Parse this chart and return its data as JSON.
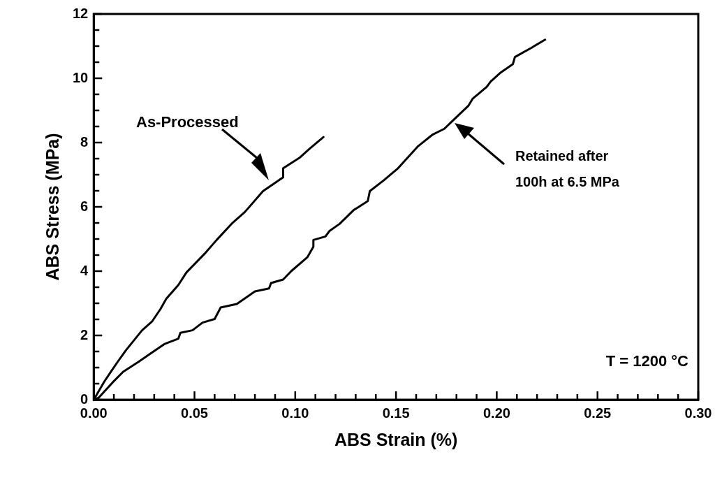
{
  "chart_data": {
    "type": "line",
    "xlabel": "ABS Strain (%)",
    "ylabel": "ABS Stress (MPa)",
    "xlim": [
      0,
      0.3
    ],
    "ylim": [
      0,
      12
    ],
    "xticks": [
      {
        "value": 0,
        "label": "0.00"
      },
      {
        "value": 0.01,
        "label": null
      },
      {
        "value": 0.02,
        "label": null
      },
      {
        "value": 0.03,
        "label": null
      },
      {
        "value": 0.04,
        "label": null
      },
      {
        "value": 0.05,
        "label": "0.05"
      },
      {
        "value": 0.06,
        "label": null
      },
      {
        "value": 0.07,
        "label": null
      },
      {
        "value": 0.08,
        "label": null
      },
      {
        "value": 0.09,
        "label": null
      },
      {
        "value": 0.1,
        "label": "0.10"
      },
      {
        "value": 0.11,
        "label": null
      },
      {
        "value": 0.12,
        "label": null
      },
      {
        "value": 0.13,
        "label": null
      },
      {
        "value": 0.14,
        "label": null
      },
      {
        "value": 0.15,
        "label": "0.15"
      },
      {
        "value": 0.16,
        "label": null
      },
      {
        "value": 0.17,
        "label": null
      },
      {
        "value": 0.18,
        "label": null
      },
      {
        "value": 0.19,
        "label": null
      },
      {
        "value": 0.2,
        "label": "0.20"
      },
      {
        "value": 0.21,
        "label": null
      },
      {
        "value": 0.22,
        "label": null
      },
      {
        "value": 0.23,
        "label": null
      },
      {
        "value": 0.24,
        "label": null
      },
      {
        "value": 0.25,
        "label": "0.25"
      },
      {
        "value": 0.26,
        "label": null
      },
      {
        "value": 0.27,
        "label": null
      },
      {
        "value": 0.28,
        "label": null
      },
      {
        "value": 0.29,
        "label": null
      },
      {
        "value": 0.3,
        "label": "0.30"
      }
    ],
    "yticks": [
      0,
      {
        "value": 0.5,
        "label": null
      },
      {
        "value": 1,
        "label": null
      },
      {
        "value": 1.5,
        "label": null
      },
      2,
      {
        "value": 2.5,
        "label": null
      },
      {
        "value": 3,
        "label": null
      },
      {
        "value": 3.5,
        "label": null
      },
      4,
      {
        "value": 4.5,
        "label": null
      },
      {
        "value": 5,
        "label": null
      },
      {
        "value": 5.5,
        "label": null
      },
      6,
      {
        "value": 6.5,
        "label": null
      },
      {
        "value": 7,
        "label": null
      },
      {
        "value": 7.5,
        "label": null
      },
      8,
      {
        "value": 8.5,
        "label": null
      },
      {
        "value": 9,
        "label": null
      },
      {
        "value": 9.5,
        "label": null
      },
      10,
      {
        "value": 10.5,
        "label": null
      },
      {
        "value": 11,
        "label": null
      },
      {
        "value": 11.5,
        "label": null
      },
      12
    ],
    "grid": false,
    "legend": false,
    "marker": "none",
    "line_style": "solid",
    "series": [
      {
        "color": "#000000",
        "x": [
          0,
          0.0052,
          0.0087,
          0.012,
          0.016,
          0.024,
          0.029,
          0.033,
          0.036,
          0.042,
          0.046,
          0.055,
          0.061,
          0.069,
          0.075,
          0.084,
          0.094,
          0.094,
          0.102,
          0.107,
          0.114
        ],
        "values": [
          0,
          0.56,
          0.89,
          1.19,
          1.54,
          2.16,
          2.44,
          2.81,
          3.14,
          3.57,
          3.96,
          4.54,
          4.97,
          5.51,
          5.84,
          6.49,
          6.92,
          7.2,
          7.52,
          7.8,
          8.17
        ]
      },
      {
        "color": "#000000",
        "x": [
          0,
          0.0024,
          0.0094,
          0.0146,
          0.0225,
          0.028,
          0.035,
          0.042,
          0.043,
          0.049,
          0.054,
          0.06,
          0.063,
          0.071,
          0.08,
          0.087,
          0.088,
          0.094,
          0.098,
          0.106,
          0.109,
          0.109,
          0.115,
          0.117,
          0.122,
          0.129,
          0.136,
          0.137,
          0.144,
          0.151,
          0.161,
          0.168,
          0.174,
          0.178,
          0.186,
          0.188,
          0.195,
          0.197,
          0.202,
          0.208,
          0.209,
          0.217,
          0.224
        ],
        "values": [
          0,
          0.06,
          0.54,
          0.87,
          1.19,
          1.43,
          1.73,
          1.9,
          2.08,
          2.16,
          2.4,
          2.51,
          2.87,
          2.98,
          3.37,
          3.46,
          3.63,
          3.74,
          4.0,
          4.43,
          4.76,
          4.97,
          5.08,
          5.25,
          5.47,
          5.9,
          6.18,
          6.49,
          6.83,
          7.2,
          7.89,
          8.24,
          8.43,
          8.67,
          9.15,
          9.36,
          9.73,
          9.9,
          10.18,
          10.44,
          10.66,
          10.94,
          11.2
        ]
      }
    ],
    "annotations": [
      "As-Processed",
      "Retained after\n100h at 6.5 MPa",
      "T = 1200 °C"
    ]
  }
}
